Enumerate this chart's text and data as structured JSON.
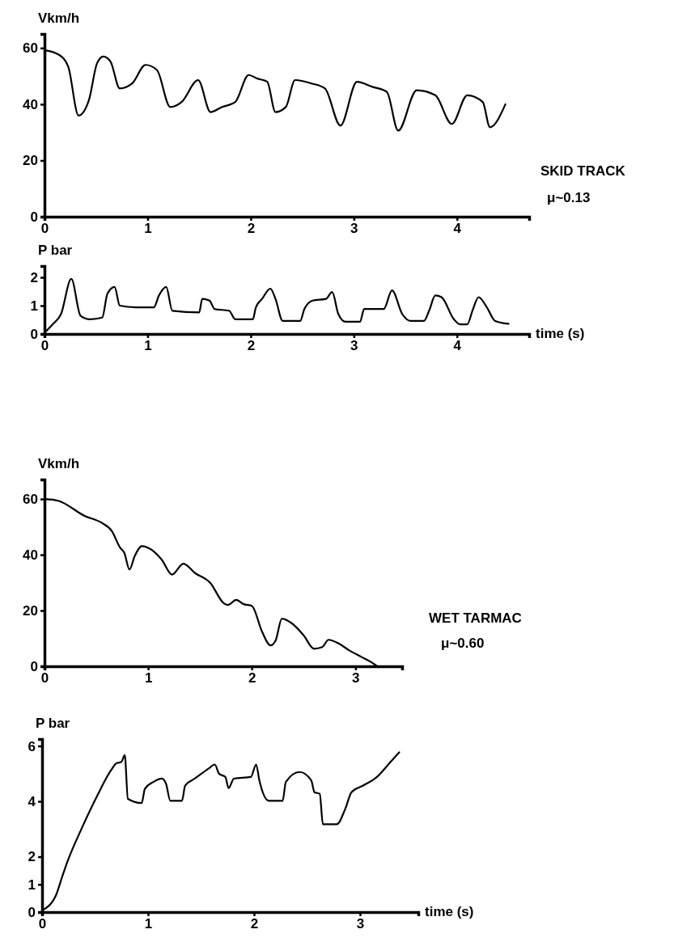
{
  "chart_data": [
    {
      "type": "line",
      "ylabel": "Vkm/h",
      "xlim": [
        0,
        4.7
      ],
      "ylim": [
        0,
        65
      ],
      "xticks": [
        0,
        1,
        2,
        3,
        4
      ],
      "yticks": [
        0,
        20,
        40,
        60
      ],
      "grid": false,
      "marker": "none",
      "line_style": "solid",
      "annotations": [
        "SKID TRACK",
        "μ~0.13"
      ],
      "series": [
        {
          "color": "#000000",
          "x": [
            0,
            0.14,
            0.23,
            0.33,
            0.43,
            0.51,
            0.57,
            0.64,
            0.73,
            0.85,
            0.98,
            1.09,
            1.22,
            1.33,
            1.49,
            1.61,
            1.72,
            1.85,
            1.98,
            2.06,
            2.16,
            2.24,
            2.34,
            2.43,
            2.59,
            2.72,
            2.87,
            3.03,
            3.18,
            3.32,
            3.43,
            3.61,
            3.79,
            3.95,
            4.1,
            4.25,
            4.32,
            4.47
          ],
          "values": [
            59.2,
            57.6,
            53.4,
            36,
            41.4,
            54.6,
            57,
            55.2,
            45.6,
            47.4,
            54,
            52.2,
            39,
            40.8,
            48.6,
            37.2,
            39,
            40.8,
            50.4,
            49.2,
            48,
            37.2,
            39,
            48.6,
            47.4,
            45.6,
            32.4,
            48,
            46.2,
            44.4,
            30.6,
            45,
            43.2,
            33,
            43.2,
            40.8,
            31.8,
            40
          ]
        }
      ]
    },
    {
      "type": "line",
      "ylabel": "P bar",
      "xlabel": "time (s)",
      "xlim": [
        0,
        4.7
      ],
      "ylim": [
        0,
        2.4
      ],
      "xticks": [
        0,
        1,
        2,
        3,
        4
      ],
      "yticks": [
        0,
        1,
        2
      ],
      "grid": false,
      "marker": "none",
      "line_style": "solid",
      "series": [
        {
          "color": "#000000",
          "x": [
            0,
            0.08,
            0.16,
            0.26,
            0.35,
            0.44,
            0.56,
            0.61,
            0.68,
            0.73,
            0.89,
            1.06,
            1.11,
            1.18,
            1.24,
            1.5,
            1.53,
            1.6,
            1.65,
            1.79,
            1.85,
            2.02,
            2.05,
            2.11,
            2.19,
            2.24,
            2.31,
            2.48,
            2.52,
            2.6,
            2.73,
            2.79,
            2.85,
            2.92,
            3.06,
            3.1,
            3.29,
            3.37,
            3.47,
            3.55,
            3.68,
            3.73,
            3.79,
            3.85,
            3.97,
            4.03,
            4.1,
            4.15,
            4.21,
            4.29,
            4.37,
            4.5
          ],
          "values": [
            0.04,
            0.34,
            0.7,
            1.95,
            0.64,
            0.52,
            0.58,
            1.42,
            1.66,
            1.0,
            0.94,
            0.94,
            1.36,
            1.66,
            0.82,
            0.76,
            1.24,
            1.18,
            0.88,
            0.82,
            0.52,
            0.52,
            0.94,
            1.24,
            1.6,
            1.24,
            0.46,
            0.46,
            0.88,
            1.18,
            1.24,
            1.48,
            0.7,
            0.43,
            0.43,
            0.88,
            0.88,
            1.54,
            0.7,
            0.46,
            0.46,
            0.82,
            1.36,
            1.3,
            0.52,
            0.34,
            0.34,
            0.82,
            1.3,
            0.94,
            0.46,
            0.36
          ]
        }
      ]
    },
    {
      "type": "line",
      "ylabel": "Vkm/h",
      "xlim": [
        0,
        3.45
      ],
      "ylim": [
        0,
        67
      ],
      "xticks": [
        0,
        1,
        2,
        3
      ],
      "yticks": [
        0,
        20,
        40,
        60
      ],
      "grid": false,
      "marker": "none",
      "line_style": "solid",
      "annotations": [
        "WET TARMAC",
        "μ~0.60"
      ],
      "series": [
        {
          "color": "#000000",
          "x": [
            0,
            0.13,
            0.39,
            0.55,
            0.65,
            0.73,
            0.77,
            0.82,
            0.87,
            0.94,
            1,
            1.13,
            1.23,
            1.34,
            1.45,
            1.6,
            1.73,
            1.77,
            1.85,
            1.92,
            2,
            2.1,
            2.18,
            2.23,
            2.29,
            2.39,
            2.5,
            2.6,
            2.68,
            2.74,
            2.84,
            2.94,
            3.06,
            3.18,
            3.21
          ],
          "values": [
            60,
            59.4,
            53.9,
            51.5,
            48.5,
            42.5,
            40.7,
            34.7,
            39.5,
            43.1,
            42.5,
            38.3,
            32.9,
            36.8,
            33.5,
            29.9,
            22.6,
            22,
            23.8,
            22.3,
            21.7,
            12.3,
            7.5,
            9.3,
            17.1,
            15.3,
            11.1,
            6.3,
            6.9,
            9.5,
            8.1,
            5.7,
            3.3,
            0.8,
            0
          ]
        }
      ]
    },
    {
      "type": "line",
      "ylabel": "P bar",
      "xlabel": "time (s)",
      "xlim": [
        0,
        3.55
      ],
      "ylim": [
        0,
        6.25
      ],
      "xticks": [
        0,
        1,
        2,
        3
      ],
      "yticks": [
        0,
        1,
        2,
        4,
        6
      ],
      "grid": false,
      "marker": "none",
      "line_style": "solid",
      "series": [
        {
          "color": "#000000",
          "x": [
            0,
            0.13,
            0.19,
            0.24,
            0.37,
            0.52,
            0.65,
            0.7,
            0.75,
            0.78,
            0.81,
            0.94,
            0.97,
            1.05,
            1.13,
            1.17,
            1.21,
            1.32,
            1.35,
            1.44,
            1.57,
            1.63,
            1.67,
            1.73,
            1.76,
            1.81,
            1.97,
            2.02,
            2.05,
            2.14,
            2.27,
            2.3,
            2.43,
            2.54,
            2.57,
            2.62,
            2.65,
            2.78,
            2.86,
            2.92,
            3.03,
            3.16,
            3.29,
            3.37
          ],
          "values": [
            0.06,
            0.6,
            1.28,
            1.83,
            2.99,
            4.2,
            5.12,
            5.37,
            5.43,
            5.67,
            4.09,
            3.94,
            4.45,
            4.7,
            4.82,
            4.63,
            4.02,
            4.02,
            4.57,
            4.82,
            5.18,
            5.33,
            5.0,
            4.88,
            4.48,
            4.82,
            4.88,
            5.33,
            4.76,
            4.02,
            4.02,
            4.7,
            5.06,
            4.76,
            4.33,
            4.27,
            3.17,
            3.17,
            3.72,
            4.33,
            4.57,
            4.88,
            5.43,
            5.77
          ]
        }
      ]
    }
  ]
}
